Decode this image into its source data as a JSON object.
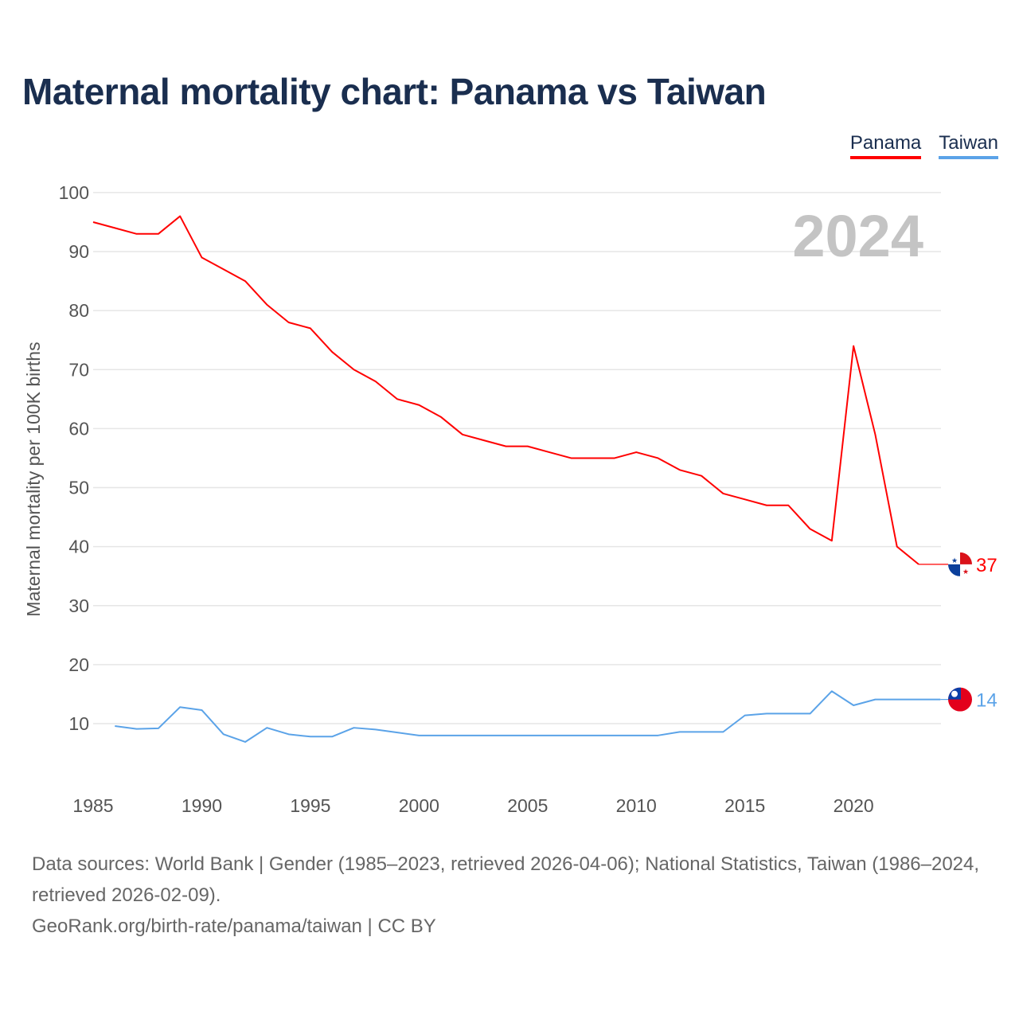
{
  "title": "Maternal mortality chart: Panama vs Taiwan",
  "year_label": "2024",
  "sources": {
    "line1": "Data sources: World Bank | Gender (1985–2023, retrieved 2026-04-06); National Statistics, Taiwan (1986–2024, retrieved 2026-02-09).",
    "line2": "GeoRank.org/birth-rate/panama/taiwan | CC BY"
  },
  "chart_data": {
    "type": "line",
    "title": "Maternal mortality chart: Panama vs Taiwan",
    "xlabel": "",
    "ylabel": "Maternal mortality per 100K births",
    "xlim": [
      1985,
      2024
    ],
    "ylim": [
      0,
      100
    ],
    "xticks": [
      1985,
      1990,
      1995,
      2000,
      2005,
      2010,
      2015,
      2020
    ],
    "yticks": [
      10,
      20,
      30,
      40,
      50,
      60,
      70,
      80,
      90,
      100
    ],
    "grid": true,
    "legend": "top-right",
    "series": [
      {
        "name": "Panama",
        "color": "#ff0000",
        "end_label": "37",
        "x": [
          1985,
          1986,
          1987,
          1988,
          1989,
          1990,
          1991,
          1992,
          1993,
          1994,
          1995,
          1996,
          1997,
          1998,
          1999,
          2000,
          2001,
          2002,
          2003,
          2004,
          2005,
          2006,
          2007,
          2008,
          2009,
          2010,
          2011,
          2012,
          2013,
          2014,
          2015,
          2016,
          2017,
          2018,
          2019,
          2020,
          2021,
          2022,
          2023
        ],
        "values": [
          95,
          94,
          93,
          93,
          96,
          89,
          87,
          85,
          81,
          78,
          77,
          73,
          70,
          68,
          65,
          64,
          62,
          59,
          58,
          57,
          57,
          56,
          55,
          55,
          55,
          56,
          55,
          53,
          52,
          49,
          48,
          47,
          47,
          43,
          41,
          74,
          59,
          40,
          37
        ]
      },
      {
        "name": "Taiwan",
        "color": "#5ba3e8",
        "end_label": "14",
        "x": [
          1986,
          1987,
          1988,
          1989,
          1990,
          1991,
          1992,
          1993,
          1994,
          1995,
          1996,
          1997,
          1998,
          1999,
          2000,
          2001,
          2002,
          2003,
          2004,
          2005,
          2006,
          2007,
          2008,
          2009,
          2010,
          2011,
          2012,
          2013,
          2014,
          2015,
          2016,
          2017,
          2018,
          2019,
          2020,
          2021,
          2022,
          2023,
          2024
        ],
        "values": [
          9.6,
          9.1,
          9.2,
          12.8,
          12.3,
          8.2,
          6.9,
          9.3,
          8.2,
          7.8,
          7.8,
          9.3,
          9.0,
          8.5,
          8.0,
          8.0,
          8.0,
          8.0,
          8.0,
          8.0,
          8.0,
          8.0,
          8.0,
          8.0,
          8.0,
          8.0,
          8.6,
          8.6,
          8.6,
          11.4,
          11.7,
          11.7,
          11.7,
          15.5,
          13.1,
          14.1,
          14.1,
          14.1,
          14.1
        ]
      }
    ]
  }
}
